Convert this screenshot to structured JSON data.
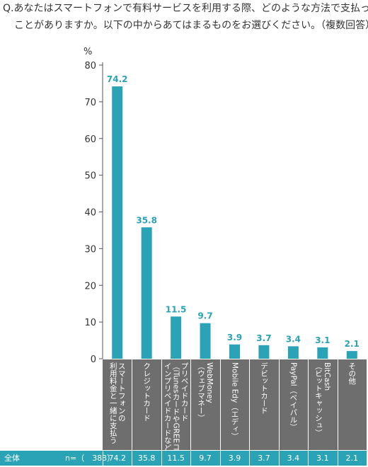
{
  "question": {
    "line1": "Q.あなたはスマートフォンで有料サービスを利用する際、どのような方法で支払った",
    "line2": "ことがありますか。以下の中からあてはまるものをお選びください。（複数回答）"
  },
  "colors": {
    "bar": "#2aa3b6",
    "label": "#2aa3b6",
    "panel": "#6e6e6e",
    "row": "#2aa3b6"
  },
  "chart_data": {
    "type": "bar",
    "unit": "%",
    "ylim": [
      0,
      80
    ],
    "yticks": [
      0,
      10,
      20,
      30,
      40,
      50,
      60,
      70,
      80
    ],
    "categories": [
      "スマートフォンの\n利用料金と一緒に支払う",
      "クレジットカード",
      "プリペイドカード\n（iTunesカードやGREEコ\nインプリペイドカードなど）",
      "WebMoney\n（ウェブマネー）",
      "Mobile Edy（エディ）",
      "デビットカード",
      "PayPal（ペイパル）",
      "BitCash\n（ビットキャッシュ）",
      "その他"
    ],
    "values": [
      74.2,
      35.8,
      11.5,
      9.7,
      3.9,
      3.7,
      3.4,
      3.1,
      2.1
    ]
  },
  "table_row": {
    "label": "全体",
    "n": "n=（　383）",
    "values": [
      "74.2",
      "35.8",
      "11.5",
      "9.7",
      "3.9",
      "3.7",
      "3.4",
      "3.1",
      "2.1"
    ]
  }
}
